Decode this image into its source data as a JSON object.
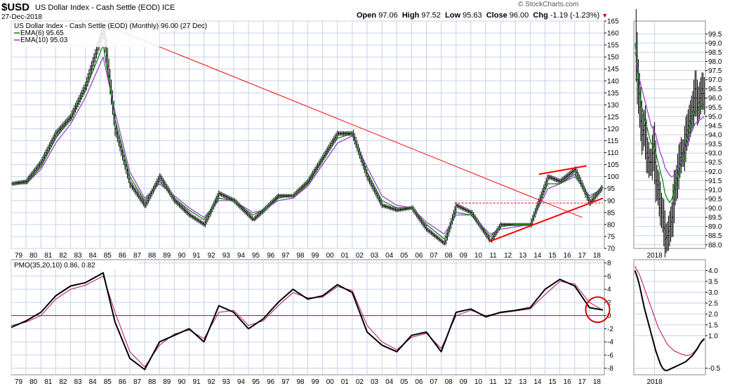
{
  "header": {
    "symbol": "$USD",
    "description": "US Dollar Index - Cash Settle (EOD)",
    "exchange": "ICE",
    "date": "27-Dec-2018",
    "brand": "© StockCharts.com",
    "open_label": "Open",
    "open": "97.06",
    "high_label": "High",
    "high": "97.52",
    "low_label": "Low",
    "low": "95.63",
    "close_label": "Close",
    "close": "96.00",
    "chg_label": "Chg",
    "chg": "-1.19 (-1.23%)"
  },
  "colors": {
    "price": "#000000",
    "ema6": "#008000",
    "ema10": "#9933cc",
    "trend": "#ff0000",
    "pmo": "#000000",
    "signal": "#b01050",
    "grid": "#c8d0e8"
  },
  "chart_data": [
    {
      "type": "line",
      "title": "US Dollar Index - Cash Settle (EOD) (Monthly) 96.00 (27 Dec)",
      "x_tick_labels": [
        "79",
        "80",
        "81",
        "82",
        "83",
        "84",
        "85",
        "86",
        "87",
        "88",
        "89",
        "90",
        "91",
        "92",
        "93",
        "94",
        "95",
        "96",
        "97",
        "98",
        "99",
        "00",
        "01",
        "02",
        "03",
        "04",
        "05",
        "06",
        "07",
        "08",
        "09",
        "10",
        "11",
        "12",
        "13",
        "14",
        "15",
        "16",
        "17",
        "18"
      ],
      "ylim": [
        70,
        165
      ],
      "y_ticks": [
        70,
        75,
        80,
        85,
        90,
        95,
        100,
        105,
        110,
        115,
        120,
        125,
        130,
        135,
        140,
        145,
        150,
        155,
        160,
        165
      ],
      "grid": true,
      "legend": "top-left",
      "x": [
        1979.0,
        1980.0,
        1981.0,
        1982.0,
        1983.0,
        1984.0,
        1985.2,
        1986.0,
        1987.0,
        1988.0,
        1989.0,
        1990.0,
        1991.0,
        1992.0,
        1993.0,
        1994.0,
        1995.3,
        1996.0,
        1997.0,
        1998.0,
        1999.0,
        2000.0,
        2001.0,
        2002.0,
        2003.0,
        2004.0,
        2005.0,
        2006.0,
        2007.0,
        2008.2,
        2009.0,
        2010.0,
        2011.3,
        2012.0,
        2013.0,
        2014.0,
        2015.2,
        2016.0,
        2017.0,
        2018.0,
        2018.9
      ],
      "series": [
        {
          "name": "$USD",
          "values": [
            97,
            98,
            106,
            118,
            125,
            138,
            162,
            120,
            97,
            88,
            100,
            90,
            84,
            80,
            93,
            90,
            82,
            86,
            92,
            92,
            98,
            108,
            118,
            118,
            100,
            88,
            86,
            87,
            78,
            72,
            88,
            85,
            73,
            80,
            80,
            80,
            100,
            98,
            103,
            89,
            96
          ]
        },
        {
          "name": "EMA(6) 95.65",
          "values": [
            97,
            97,
            104,
            116,
            124,
            136,
            155,
            124,
            100,
            90,
            98,
            91,
            86,
            82,
            91,
            90,
            84,
            86,
            91,
            92,
            97,
            107,
            116,
            118,
            102,
            90,
            87,
            87,
            80,
            74,
            85,
            84,
            75,
            79,
            80,
            80,
            97,
            97,
            101,
            91,
            95.65
          ]
        },
        {
          "name": "EMA(10) 95.03",
          "values": [
            97,
            97,
            103,
            114,
            122,
            133,
            150,
            127,
            102,
            91,
            97,
            92,
            87,
            83,
            90,
            90,
            85,
            86,
            90,
            91,
            96,
            105,
            114,
            117,
            104,
            92,
            88,
            87,
            81,
            76,
            84,
            84,
            76,
            78,
            79,
            80,
            95,
            97,
            100,
            92,
            95.03
          ]
        }
      ],
      "annotations": [
        {
          "kind": "trendline",
          "from": [
            1985.1,
            164
          ],
          "to": [
            2017.5,
            83
          ]
        },
        {
          "kind": "support",
          "from": [
            2011.3,
            73
          ],
          "to": [
            2018.9,
            91
          ]
        },
        {
          "kind": "channel",
          "from": [
            2014.6,
            101
          ],
          "to": [
            2017.8,
            104.5
          ]
        },
        {
          "kind": "horizontal-dashed",
          "y": 89,
          "from": 2008.9,
          "to": 2018.9
        }
      ]
    },
    {
      "type": "line",
      "title": "",
      "x_tick_labels": [
        "2018"
      ],
      "ylim": [
        87.8,
        100.2
      ],
      "y_ticks": [
        88.0,
        88.5,
        89.0,
        89.5,
        90.0,
        90.5,
        91.0,
        91.5,
        92.0,
        92.5,
        93.0,
        93.5,
        94.0,
        94.5,
        95.0,
        95.5,
        96.0,
        96.5,
        97.0,
        97.5,
        98.0,
        98.5,
        99.0,
        99.5
      ],
      "grid": true,
      "x": [
        0,
        1,
        2,
        3,
        4,
        5,
        6,
        7,
        8,
        9,
        10,
        11,
        12,
        13,
        14,
        15,
        16,
        17,
        18,
        19,
        20,
        21,
        22,
        23,
        24,
        25,
        26,
        27,
        28,
        29,
        30
      ],
      "series": [
        {
          "name": "$USD",
          "values": [
            99.5,
            97,
            95.5,
            94,
            94.5,
            93,
            92.5,
            92.5,
            93.5,
            91.5,
            91,
            90,
            89.5,
            88.3,
            88.5,
            89,
            89.5,
            91,
            91.5,
            92.5,
            93,
            93,
            94,
            94.5,
            95,
            95.5,
            96.5,
            95.5,
            96,
            96.5,
            96
          ]
        },
        {
          "name": "EMA(6)",
          "values": [
            99,
            98,
            96.5,
            95.5,
            95,
            94.5,
            94,
            93.5,
            93.5,
            93,
            92.5,
            92,
            91.5,
            90.8,
            90.5,
            90.3,
            90.5,
            91,
            91.5,
            92,
            92.5,
            93,
            93.5,
            94,
            94.5,
            95,
            95.3,
            95.3,
            95.5,
            95.6,
            95.65
          ]
        },
        {
          "name": "EMA(10)",
          "values": [
            98.5,
            98,
            97,
            96.5,
            96,
            95.5,
            95,
            94.5,
            94.3,
            94,
            93.5,
            93,
            92.7,
            92.2,
            92,
            91.8,
            91.7,
            91.8,
            92,
            92.3,
            92.7,
            93,
            93.3,
            93.7,
            94,
            94.3,
            94.6,
            94.7,
            94.8,
            94.9,
            95.03
          ]
        }
      ]
    },
    {
      "type": "line",
      "title": "PMO(35,20,10) 0.86, 0.82",
      "x_tick_labels": [
        "79",
        "80",
        "81",
        "82",
        "83",
        "84",
        "85",
        "86",
        "87",
        "88",
        "89",
        "90",
        "91",
        "92",
        "93",
        "94",
        "95",
        "96",
        "97",
        "98",
        "99",
        "00",
        "01",
        "02",
        "03",
        "04",
        "05",
        "06",
        "07",
        "08",
        "09",
        "10",
        "11",
        "12",
        "13",
        "14",
        "15",
        "16",
        "17",
        "18"
      ],
      "ylim": [
        -9,
        8.5
      ],
      "y_ticks": [
        -8,
        -6,
        -4,
        -2,
        0,
        2,
        4,
        6,
        8
      ],
      "grid": true,
      "x": [
        1979.0,
        1980.0,
        1981.0,
        1982.0,
        1983.0,
        1984.0,
        1985.2,
        1986.0,
        1987.0,
        1988.0,
        1989.0,
        1990.0,
        1991.0,
        1992.0,
        1993.0,
        1994.0,
        1995.0,
        1996.0,
        1997.0,
        1998.0,
        1999.0,
        2000.0,
        2001.0,
        2002.0,
        2003.0,
        2004.0,
        2005.0,
        2006.0,
        2007.0,
        2008.0,
        2009.0,
        2010.0,
        2011.0,
        2012.0,
        2013.0,
        2014.0,
        2015.0,
        2016.0,
        2017.0,
        2018.0,
        2018.9
      ],
      "series": [
        {
          "name": "PMO 0.86",
          "values": [
            -1.8,
            -0.8,
            0.5,
            3,
            4.5,
            5,
            6.5,
            -1,
            -6.5,
            -8.2,
            -4,
            -3,
            -2,
            -4,
            1.5,
            0.5,
            -2,
            -0.5,
            2,
            4,
            2.5,
            3,
            4.7,
            3.5,
            -2.5,
            -4.5,
            -5.5,
            -3,
            -2.5,
            -5.5,
            0.5,
            1,
            -0.2,
            0.5,
            0.8,
            1.2,
            4,
            5.5,
            4.5,
            1.2,
            0.86
          ]
        },
        {
          "name": "Signal 0.82",
          "values": [
            -1.5,
            -1,
            0,
            2.5,
            4,
            4.6,
            6,
            0.5,
            -5.5,
            -7.8,
            -4.5,
            -2.8,
            -2.2,
            -3.5,
            0.5,
            0.8,
            -1.5,
            -0.8,
            1.5,
            3.5,
            2.7,
            2.8,
            4.4,
            3.8,
            -1.5,
            -4,
            -5.2,
            -3.3,
            -2.7,
            -5,
            0,
            0.8,
            0,
            0.4,
            0.7,
            1,
            3.2,
            5.2,
            4.8,
            2,
            0.82
          ]
        }
      ]
    },
    {
      "type": "line",
      "title": "",
      "x_tick_labels": [
        "2018"
      ],
      "ylim": [
        -0.8,
        4.5
      ],
      "y_ticks": [
        -0.5,
        1.0,
        1.5,
        2.0,
        2.5,
        3.0,
        3.5,
        4.0
      ],
      "grid": true,
      "x": [
        0,
        1,
        2,
        3,
        4,
        5,
        6,
        7,
        8,
        9,
        10,
        11,
        12,
        13,
        14,
        15,
        16,
        17,
        18,
        19,
        20,
        21,
        22,
        23,
        24,
        25,
        26,
        27,
        28,
        29,
        30
      ],
      "series": [
        {
          "name": "PMO",
          "values": [
            4.0,
            3.7,
            3.3,
            2.8,
            2.3,
            1.9,
            1.5,
            1.1,
            0.7,
            0.3,
            0.0,
            -0.3,
            -0.5,
            -0.6,
            -0.6,
            -0.55,
            -0.5,
            -0.45,
            -0.4,
            -0.35,
            -0.3,
            -0.25,
            -0.2,
            -0.1,
            0.0,
            0.1,
            0.25,
            0.4,
            0.6,
            0.75,
            0.86
          ]
        },
        {
          "name": "Signal",
          "values": [
            4.2,
            4.0,
            3.8,
            3.5,
            3.2,
            2.9,
            2.6,
            2.3,
            2.0,
            1.7,
            1.4,
            1.2,
            1.0,
            0.8,
            0.6,
            0.5,
            0.4,
            0.3,
            0.25,
            0.2,
            0.15,
            0.12,
            0.1,
            0.1,
            0.12,
            0.2,
            0.3,
            0.45,
            0.6,
            0.72,
            0.82
          ]
        }
      ]
    }
  ]
}
